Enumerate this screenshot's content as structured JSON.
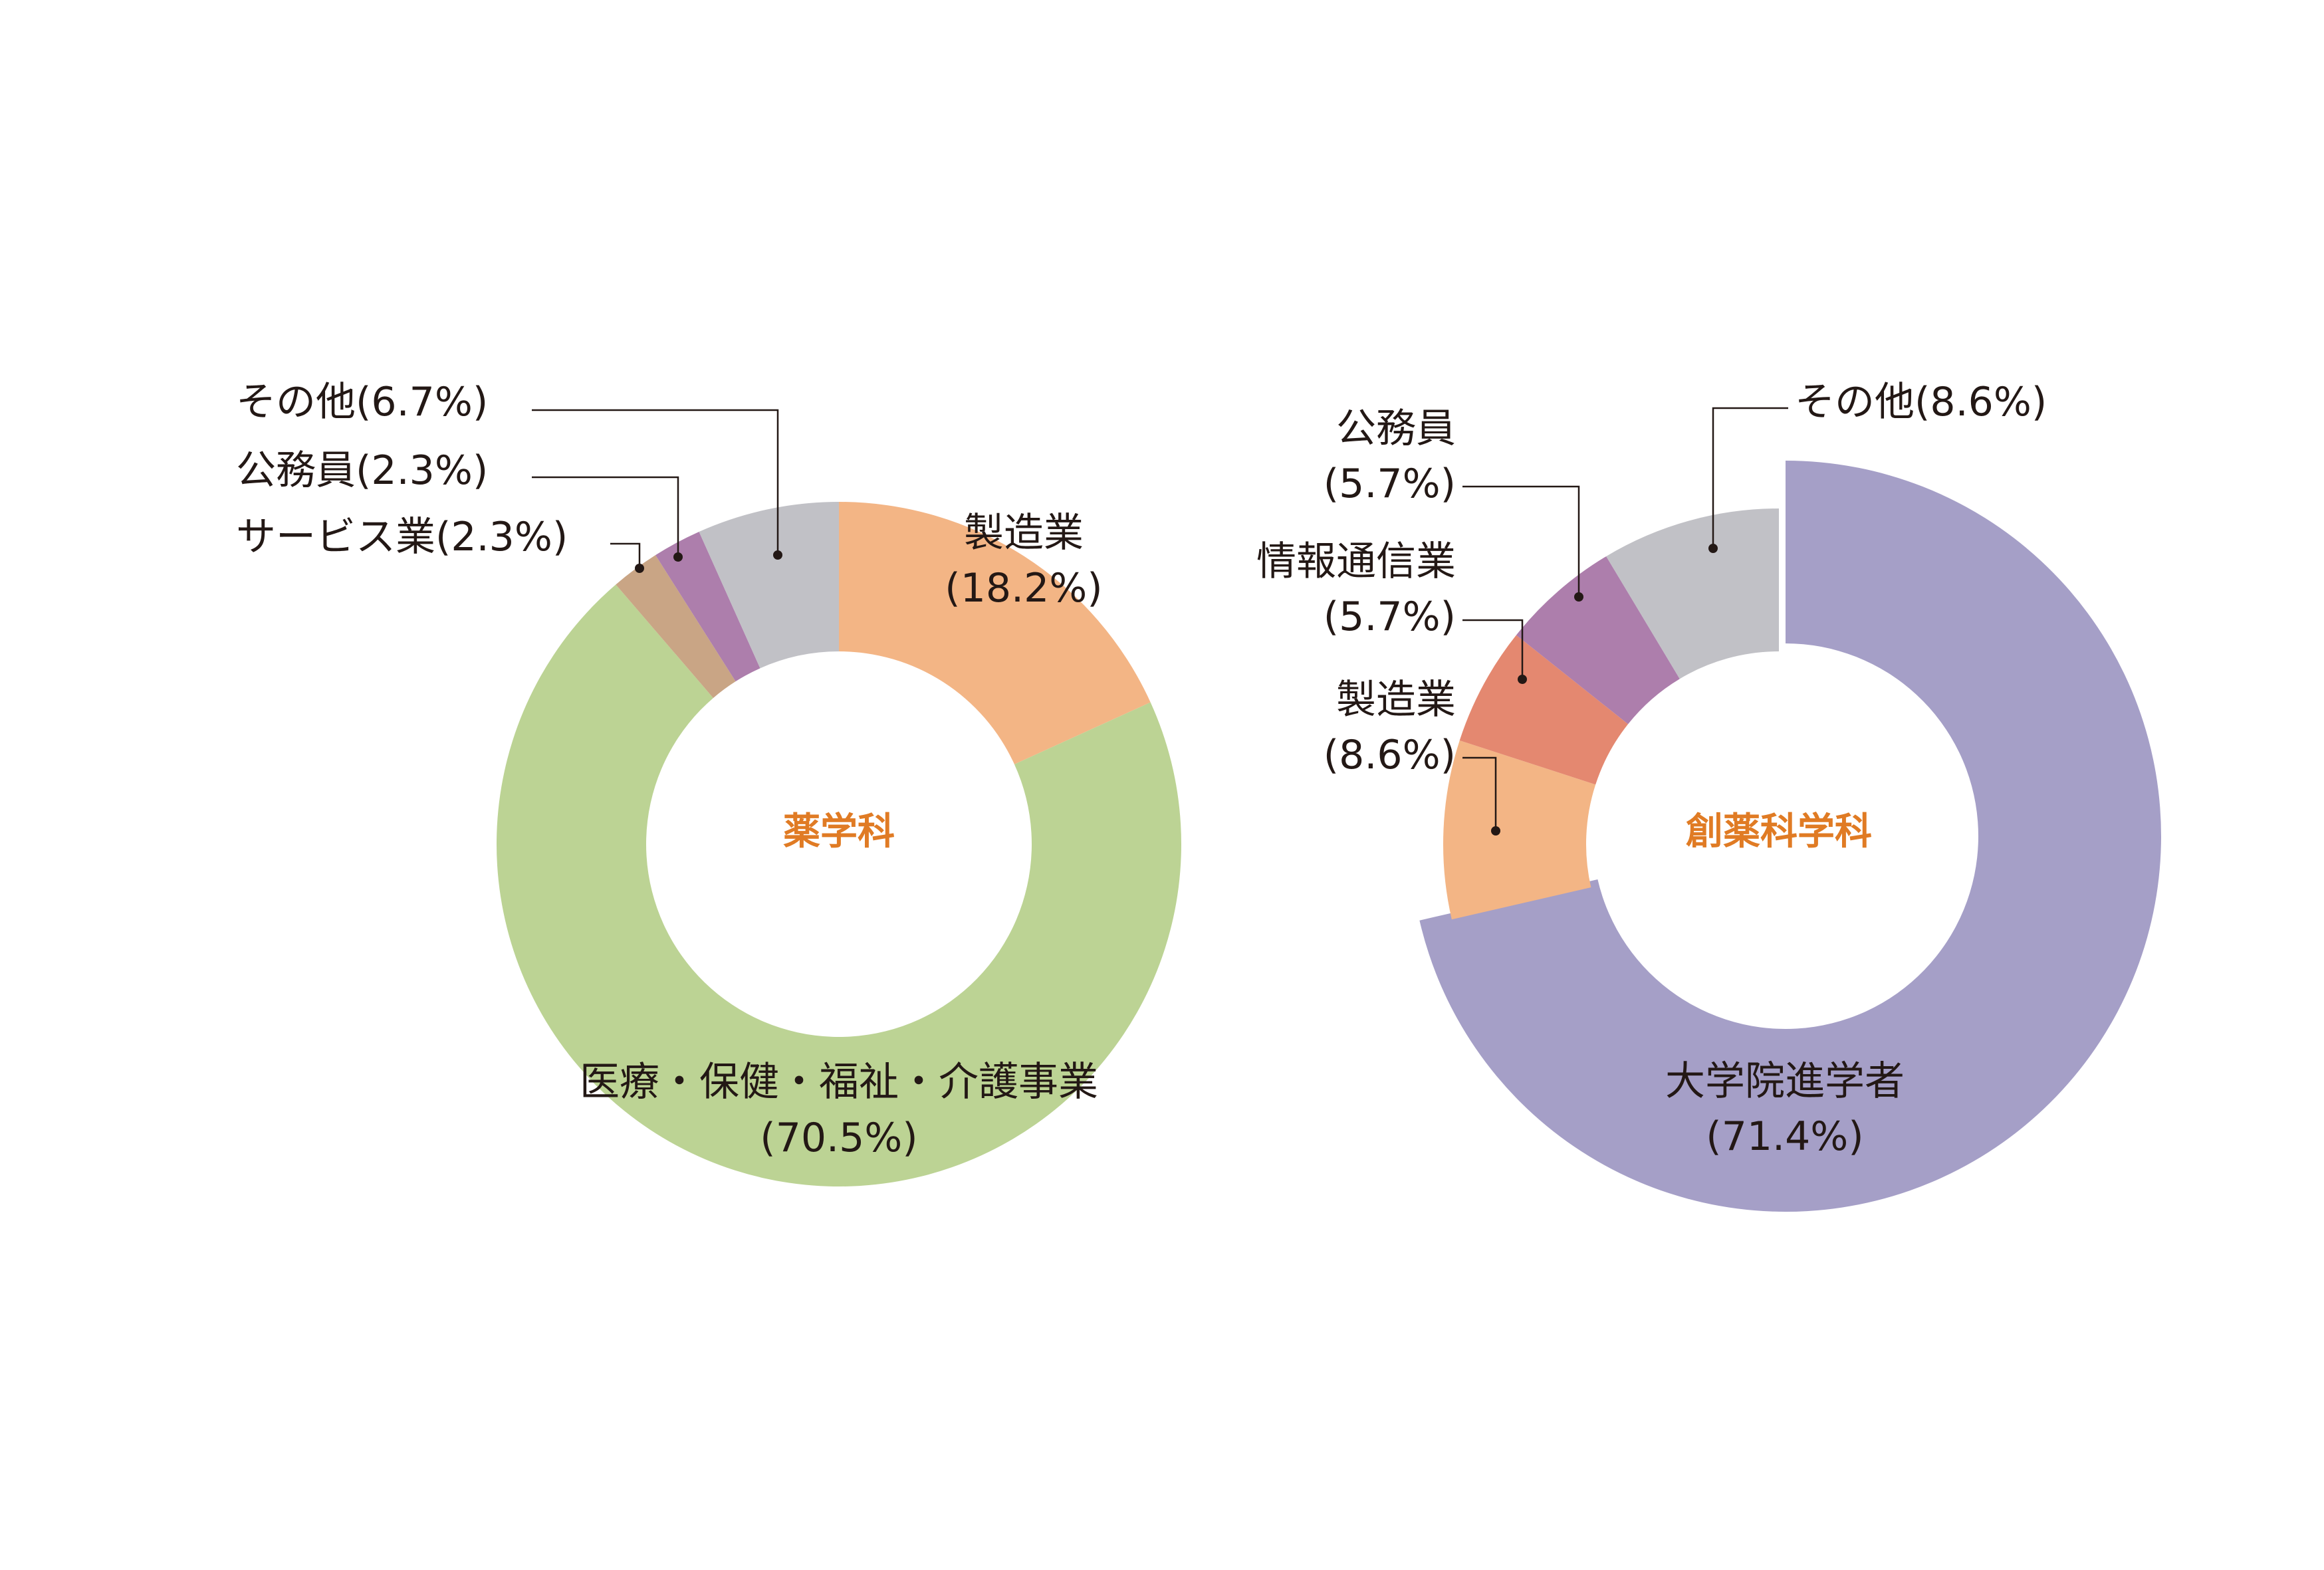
{
  "chart_data": [
    {
      "type": "pie",
      "center_label": "薬学科",
      "slices": [
        {
          "label": "製造業",
          "pct_text": "(18.2%)",
          "value": 18.2,
          "color": "#f3b585"
        },
        {
          "label": "医療・保健・福祉・介護事業",
          "pct_text": "(70.5%)",
          "value": 70.5,
          "color": "#bcd394"
        },
        {
          "label": "サービス業",
          "pct_text": "(2.3%)",
          "value": 2.3,
          "color": "#c9a585"
        },
        {
          "label": "公務員",
          "pct_text": "(2.3%)",
          "value": 2.3,
          "color": "#ad7eac"
        },
        {
          "label": "その他",
          "pct_text": "(6.7%)",
          "value": 6.7,
          "color": "#c1c1c6"
        }
      ]
    },
    {
      "type": "pie",
      "center_label": "創薬科学科",
      "slices": [
        {
          "label": "大学院進学者",
          "pct_text": "(71.4%)",
          "value": 71.4,
          "color": "#a59fc7"
        },
        {
          "label": "製造業",
          "pct_text": "(8.6%)",
          "value": 8.6,
          "color": "#f3b585"
        },
        {
          "label": "情報通信業",
          "pct_text": "(5.7%)",
          "value": 5.7,
          "color": "#e48870"
        },
        {
          "label": "公務員",
          "pct_text": "(5.7%)",
          "value": 5.7,
          "color": "#ad7eac"
        },
        {
          "label": "その他",
          "pct_text": "(8.6%)",
          "value": 8.6,
          "color": "#c1c1c6"
        }
      ]
    }
  ]
}
